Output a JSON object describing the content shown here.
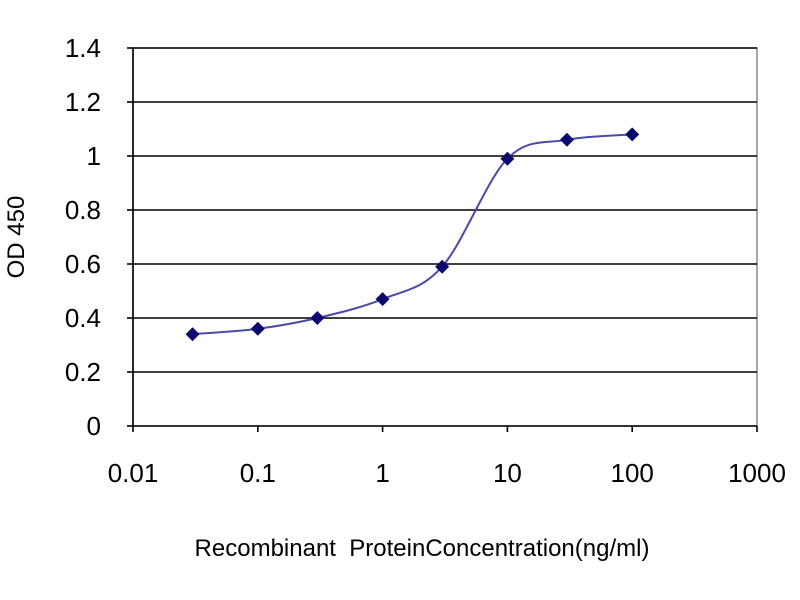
{
  "chart_data": {
    "type": "line",
    "title": "",
    "xlabel": "Recombinant  ProteinConcentration(ng/ml)",
    "ylabel": "OD 450",
    "xscale": "log",
    "xlim": [
      0.01,
      1000
    ],
    "ylim": [
      0,
      1.4
    ],
    "x_ticks": [
      0.01,
      0.1,
      1,
      10,
      100,
      1000
    ],
    "x_tick_labels": [
      "0.01",
      "0.1",
      "1",
      "10",
      "100",
      "1000"
    ],
    "y_ticks": [
      0,
      0.2,
      0.4,
      0.6,
      0.8,
      1,
      1.2,
      1.4
    ],
    "y_tick_labels": [
      "0",
      "0.2",
      "0.4",
      "0.6",
      "0.8",
      "1",
      "1.2",
      "1.4"
    ],
    "grid": "horizontal",
    "legend": "none",
    "series": [
      {
        "x": [
          0.03,
          0.1,
          0.3,
          1,
          3,
          10,
          30,
          100
        ],
        "y": [
          0.34,
          0.36,
          0.4,
          0.47,
          0.59,
          0.99,
          1.06,
          1.08
        ],
        "marker": "diamond",
        "color": "#0a0a6e",
        "line_color": "#4a4aa8",
        "smooth": true
      }
    ]
  }
}
